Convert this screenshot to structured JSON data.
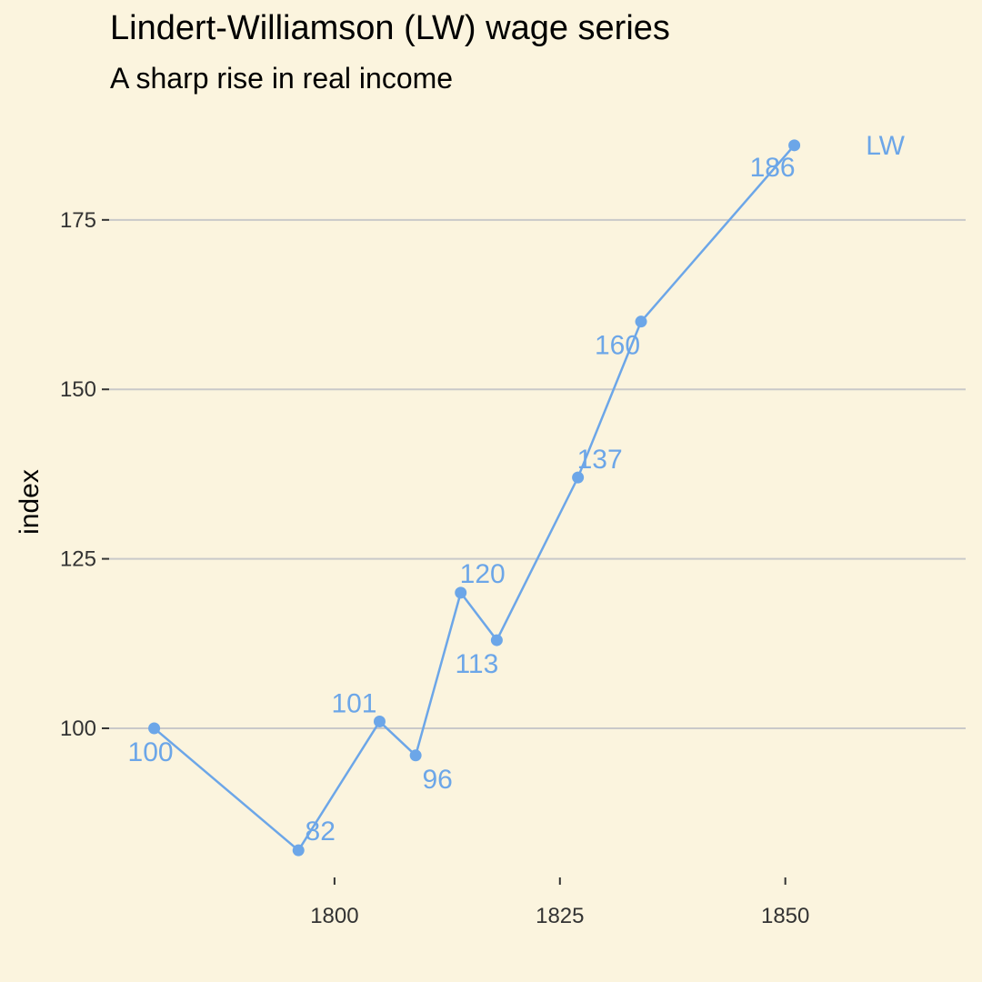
{
  "chart_data": {
    "type": "line",
    "title": "Lindert-Williamson (LW) wage series",
    "subtitle": "A sharp rise in real income",
    "xlabel": "",
    "ylabel": "index",
    "xlim": [
      1775,
      1870
    ],
    "ylim": [
      78,
      190
    ],
    "x_ticks": [
      1800,
      1825,
      1850
    ],
    "y_ticks": [
      100,
      125,
      150,
      175
    ],
    "grid": "horizontal",
    "series": [
      {
        "name": "LW",
        "color": "#6CA6E8",
        "x": [
          1780,
          1796,
          1805,
          1809,
          1814,
          1818,
          1827,
          1834,
          1851
        ],
        "y": [
          100,
          82,
          101,
          96,
          120,
          113,
          137,
          160,
          186
        ],
        "labels": [
          "100",
          "82",
          "101",
          "96",
          "120",
          "113",
          "137",
          "160",
          "186"
        ]
      }
    ]
  }
}
